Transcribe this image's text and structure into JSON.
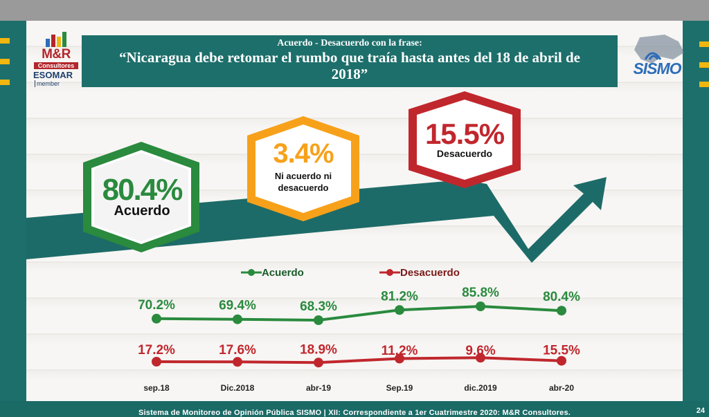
{
  "title": {
    "line1": "Acuerdo - Desacuerdo con la frase:",
    "line2": "“Nicaragua debe retomar el rumbo que traía hasta antes del 18 de abril de 2018”"
  },
  "logos": {
    "mr": "M&R",
    "mr_sub": "Consultores",
    "esomar": "ESOMAR",
    "member": "member",
    "sismo": "SISMO"
  },
  "kpis": {
    "acuerdo": {
      "value": "80.4%",
      "label": "Acuerdo",
      "color": "#2a8a3e"
    },
    "neutral": {
      "value": "3.4%",
      "label_line1": "Ni acuerdo ni",
      "label_line2": "desacuerdo",
      "color": "#f7a11a"
    },
    "desacuerdo": {
      "value": "15.5%",
      "label": "Desacuerdo",
      "color": "#c0272d"
    }
  },
  "chart_data": {
    "type": "line",
    "categories": [
      "sep.18",
      "Dic.2018",
      "abr-19",
      "Sep.19",
      "dic.2019",
      "abr-20"
    ],
    "series": [
      {
        "name": "Acuerdo",
        "color": "#2a8a3e",
        "values": [
          70.2,
          69.4,
          68.3,
          81.2,
          85.8,
          80.4
        ],
        "labels": [
          "70.2%",
          "69.4%",
          "68.3%",
          "81.2%",
          "85.8%",
          "80.4%"
        ]
      },
      {
        "name": "Desacuerdo",
        "color": "#c0272d",
        "values": [
          17.2,
          17.6,
          18.9,
          11.2,
          9.6,
          15.5
        ],
        "labels": [
          "17.2%",
          "17.6%",
          "18.9%",
          "11.2%",
          "9.6%",
          "15.5%"
        ]
      }
    ],
    "legend_position": "top",
    "grid": false
  },
  "footer": {
    "text": "Sistema de Monitoreo de Opinión Pública SISMO | XII: Correspondiente a 1er Cuatrimestre 2020: M&R Consultores.",
    "page": "24"
  },
  "colors": {
    "teal": "#1d6f6b",
    "yellow": "#f1b60f"
  }
}
